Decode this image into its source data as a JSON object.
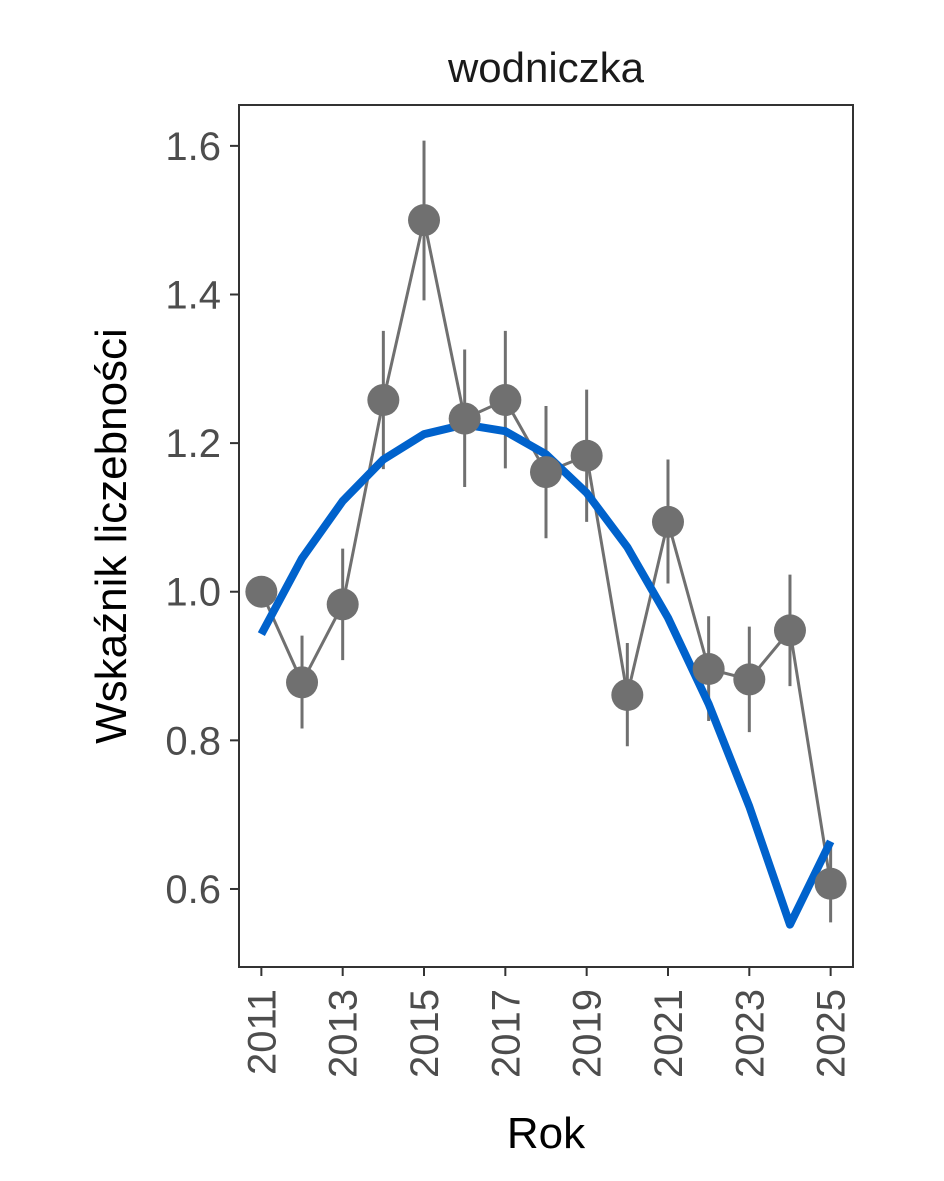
{
  "chart_data": {
    "type": "line",
    "title": "wodniczka",
    "xlabel": "Rok",
    "ylabel": "Wskaźnik liczebności",
    "xlim": [
      2010.45,
      2025.55
    ],
    "ylim": [
      0.495,
      1.655
    ],
    "x_ticks": [
      2011,
      2013,
      2015,
      2017,
      2019,
      2021,
      2023,
      2025
    ],
    "x_tick_labels": [
      "2011",
      "2013",
      "2015",
      "2017",
      "2019",
      "2021",
      "2023",
      "2025"
    ],
    "y_ticks": [
      0.6,
      0.8,
      1.0,
      1.2,
      1.4,
      1.6
    ],
    "y_tick_labels": [
      "0.6",
      "0.8",
      "1.0",
      "1.2",
      "1.4",
      "1.6"
    ],
    "grid": false,
    "series": [
      {
        "type": "line-points-errorbars",
        "color": "#707070",
        "x": [
          2011,
          2012,
          2013,
          2014,
          2015,
          2016,
          2017,
          2018,
          2019,
          2020,
          2021,
          2022,
          2023,
          2024,
          2025
        ],
        "y": [
          1.0,
          0.878,
          0.983,
          1.258,
          1.5,
          1.233,
          1.258,
          1.161,
          1.183,
          0.861,
          1.094,
          0.896,
          0.882,
          0.948,
          0.607
        ],
        "lower": [
          1.0,
          0.816,
          0.908,
          1.165,
          1.392,
          1.141,
          1.166,
          1.072,
          1.094,
          0.792,
          1.011,
          0.826,
          0.811,
          0.873,
          0.555
        ],
        "upper": [
          1.0,
          0.941,
          1.058,
          1.351,
          1.607,
          1.326,
          1.351,
          1.25,
          1.272,
          0.931,
          1.178,
          0.967,
          0.953,
          1.023,
          0.659
        ]
      },
      {
        "type": "trend",
        "color": "#0062cc",
        "x": [
          2011,
          2012,
          2013,
          2014,
          2015,
          2016,
          2017,
          2018,
          2019,
          2020,
          2021,
          2022,
          2023,
          2024,
          2025
        ],
        "y": [
          0.943,
          1.045,
          1.122,
          1.178,
          1.212,
          1.225,
          1.216,
          1.185,
          1.133,
          1.06,
          0.965,
          0.849,
          0.711,
          0.552,
          0.664
        ]
      }
    ]
  }
}
